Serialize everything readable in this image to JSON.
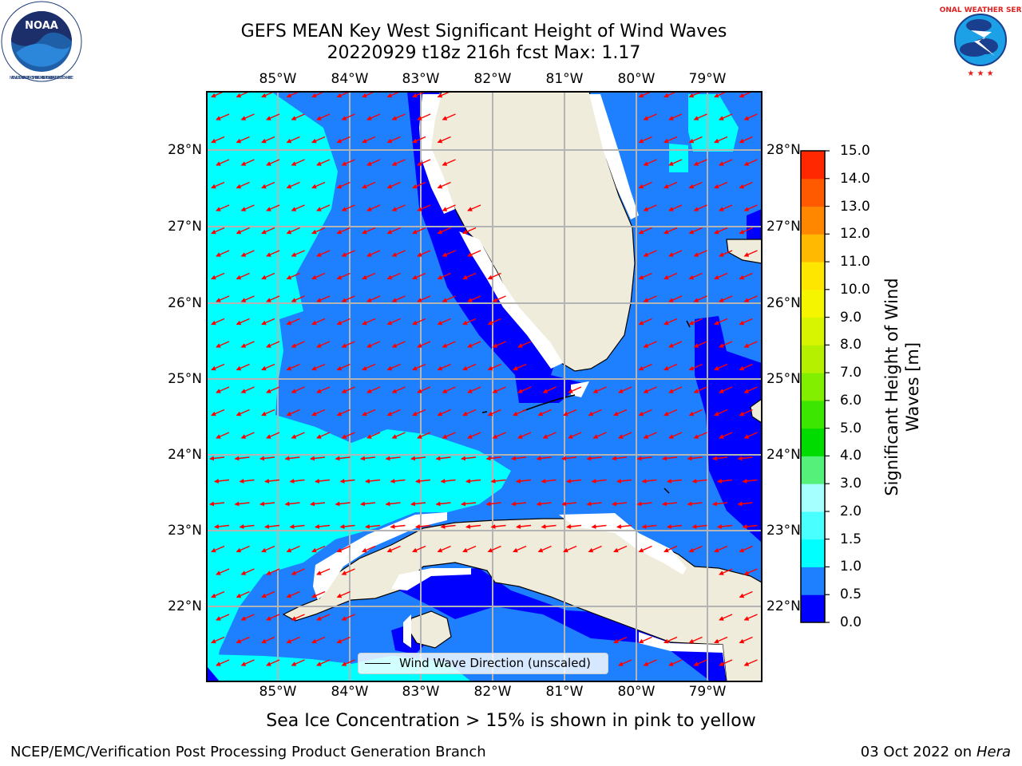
{
  "header": {
    "title_line1": "GEFS MEAN Key West Significant Height of Wind Waves",
    "title_line2": "20220929 t18z 216h fcst   Max: 1.17"
  },
  "logos": {
    "left": "noaa-logo",
    "left_text": "NOAA",
    "left_ring_text": "NATIONAL OCEANIC AND ATMOSPHERIC ADMINISTRATION · U.S. DEPARTMENT OF COMMERCE",
    "right": "nws-logo",
    "right_ring_text": "NATIONAL WEATHER SERVICE"
  },
  "map": {
    "lon_labels": [
      "85°W",
      "84°W",
      "83°W",
      "82°W",
      "81°W",
      "80°W",
      "79°W"
    ],
    "lat_labels": [
      "28°N",
      "27°N",
      "26°N",
      "25°N",
      "24°N",
      "23°N",
      "22°N"
    ],
    "land_color": "#efecdc",
    "gridline_color": "#b4b4b4",
    "arrow_color": "#ff0000",
    "arrow_icon": "wind-direction-arrow-icon",
    "region": "Florida Straits, Key West, Florida peninsula, Cuba"
  },
  "legend": {
    "label": "Wind Wave Direction (unscaled)"
  },
  "colorbar": {
    "label": "Significant Height of Wind Waves [m]",
    "label_line1": "Significant Height of Wind",
    "label_line2": "Waves [m]",
    "ticks": [
      "15.0",
      "14.0",
      "13.0",
      "12.0",
      "11.0",
      "10.0",
      "9.0",
      "8.0",
      "7.0",
      "6.0",
      "5.0",
      "4.0",
      "3.0",
      "2.0",
      "1.5",
      "1.0",
      "0.5",
      "0.0"
    ],
    "colors_bottom_to_top": [
      "#0000ff",
      "#1e7fff",
      "#00ffff",
      "#49ffff",
      "#a6ffff",
      "#55f07a",
      "#00dc00",
      "#3ce600",
      "#82ee00",
      "#b4f000",
      "#d7f500",
      "#f5f500",
      "#ffe600",
      "#ffb900",
      "#ff8700",
      "#ff5a00",
      "#ff2800"
    ]
  },
  "notes": {
    "sea_ice": "Sea Ice Concentration > 15% is shown in pink to yellow"
  },
  "footer": {
    "left": "NCEP/EMC/Verification Post Processing Product Generation Branch",
    "right_date": "03 Oct 2022 on",
    "right_host": "Hera"
  }
}
